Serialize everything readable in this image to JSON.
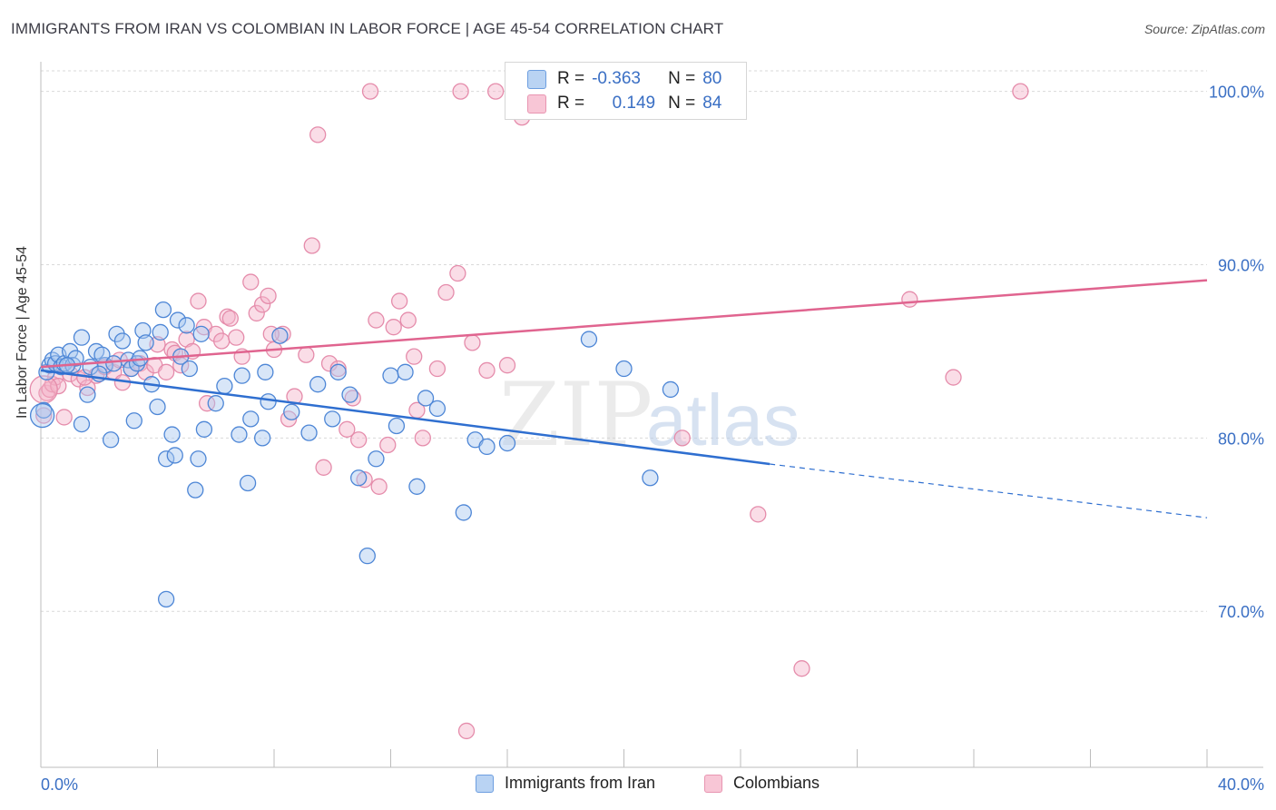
{
  "header": {
    "title": "IMMIGRANTS FROM IRAN VS COLOMBIAN IN LABOR FORCE | AGE 45-54 CORRELATION CHART",
    "source": "Source: ZipAtlas.com"
  },
  "watermark": {
    "zip": "ZIP",
    "atlas": "atlas"
  },
  "legend": {
    "r_label": "R =",
    "n_label": "N =",
    "series_a": {
      "r": "-0.363",
      "n": "80"
    },
    "series_b": {
      "r": "0.149",
      "n": "84"
    }
  },
  "bottom_legend": {
    "series_a": "Immigrants from Iran",
    "series_b": "Colombians"
  },
  "chart_data": {
    "type": "scatter",
    "title": "IMMIGRANTS FROM IRAN VS COLOMBIAN IN LABOR FORCE | AGE 45-54 CORRELATION CHART",
    "xlabel": "",
    "ylabel": "In Labor Force | Age 45-54",
    "xlim": [
      0,
      40
    ],
    "ylim": [
      61,
      101.5
    ],
    "x_tick_labels": [
      "0.0%",
      "40.0%"
    ],
    "y_ticks": [
      70,
      80,
      90,
      100
    ],
    "y_tick_labels": [
      "70.0%",
      "80.0%",
      "90.0%",
      "100.0%"
    ],
    "grid": true,
    "colors": {
      "series_a": "#5b8fd9",
      "series_b": "#e991b0",
      "trend_a": "#2f6fd0",
      "trend_b": "#e0648f",
      "tick_text": "#3a6fc4"
    },
    "series": [
      {
        "name": "Immigrants from Iran",
        "r": -0.363,
        "n": 80,
        "trend": {
          "x0": 0,
          "y0": 83.9,
          "x1": 25,
          "y1": 78.5,
          "dash_x1": 40,
          "dash_y1": 75.4
        },
        "points": [
          [
            0.1,
            81.6
          ],
          [
            0.2,
            83.8
          ],
          [
            0.3,
            84.2
          ],
          [
            0.4,
            84.5
          ],
          [
            0.5,
            84.3
          ],
          [
            0.6,
            84.8
          ],
          [
            0.7,
            84.1
          ],
          [
            0.8,
            84.3
          ],
          [
            1.0,
            85.0
          ],
          [
            1.1,
            84.2
          ],
          [
            1.2,
            84.6
          ],
          [
            1.4,
            85.8
          ],
          [
            1.6,
            82.5
          ],
          [
            1.9,
            85.0
          ],
          [
            2.2,
            84.2
          ],
          [
            2.1,
            84.8
          ],
          [
            2.6,
            86.0
          ],
          [
            2.8,
            85.6
          ],
          [
            3.0,
            84.5
          ],
          [
            3.1,
            84.0
          ],
          [
            3.3,
            84.3
          ],
          [
            3.5,
            86.2
          ],
          [
            3.6,
            85.5
          ],
          [
            3.8,
            83.1
          ],
          [
            4.0,
            81.8
          ],
          [
            4.1,
            86.1
          ],
          [
            4.2,
            87.4
          ],
          [
            4.3,
            78.8
          ],
          [
            4.5,
            80.2
          ],
          [
            4.7,
            86.8
          ],
          [
            4.8,
            84.7
          ],
          [
            5.0,
            86.5
          ],
          [
            5.1,
            84.0
          ],
          [
            5.3,
            77.0
          ],
          [
            5.4,
            78.8
          ],
          [
            5.5,
            86.0
          ],
          [
            5.6,
            80.5
          ],
          [
            6.3,
            83.0
          ],
          [
            6.8,
            80.2
          ],
          [
            6.9,
            83.6
          ],
          [
            7.1,
            77.4
          ],
          [
            7.2,
            81.1
          ],
          [
            7.6,
            80.0
          ],
          [
            7.7,
            83.8
          ],
          [
            7.8,
            82.1
          ],
          [
            8.2,
            85.9
          ],
          [
            8.6,
            81.5
          ],
          [
            9.2,
            80.3
          ],
          [
            9.5,
            83.1
          ],
          [
            10.0,
            81.1
          ],
          [
            10.2,
            83.8
          ],
          [
            10.6,
            82.5
          ],
          [
            10.9,
            77.7
          ],
          [
            11.2,
            73.2
          ],
          [
            11.5,
            78.8
          ],
          [
            12.0,
            83.6
          ],
          [
            12.5,
            83.8
          ],
          [
            12.9,
            77.2
          ],
          [
            13.2,
            82.3
          ],
          [
            13.6,
            81.7
          ],
          [
            14.5,
            75.7
          ],
          [
            14.9,
            79.9
          ],
          [
            15.3,
            79.5
          ],
          [
            16.0,
            79.7
          ],
          [
            18.8,
            85.7
          ],
          [
            20.0,
            84.0
          ],
          [
            20.9,
            77.7
          ],
          [
            21.6,
            82.8
          ],
          [
            4.3,
            70.7
          ],
          [
            2.4,
            79.9
          ],
          [
            1.4,
            80.8
          ],
          [
            3.2,
            81.0
          ],
          [
            0.9,
            84.2
          ],
          [
            1.7,
            84.1
          ],
          [
            2.0,
            83.7
          ],
          [
            2.5,
            84.3
          ],
          [
            3.4,
            84.6
          ],
          [
            4.6,
            79.0
          ],
          [
            6.0,
            82.0
          ],
          [
            12.2,
            80.7
          ]
        ]
      },
      {
        "name": "Colombians",
        "r": 0.149,
        "n": 84,
        "trend": {
          "x0": 0,
          "y0": 84.1,
          "x1": 40,
          "y1": 89.1
        },
        "points": [
          [
            0.1,
            81.3
          ],
          [
            0.2,
            82.6
          ],
          [
            0.3,
            82.8
          ],
          [
            0.4,
            83.1
          ],
          [
            0.5,
            83.5
          ],
          [
            0.6,
            83.0
          ],
          [
            0.8,
            81.2
          ],
          [
            1.0,
            83.7
          ],
          [
            1.3,
            83.4
          ],
          [
            1.6,
            82.9
          ],
          [
            1.9,
            83.6
          ],
          [
            2.2,
            84.1
          ],
          [
            2.5,
            83.8
          ],
          [
            2.8,
            83.2
          ],
          [
            3.1,
            84.0
          ],
          [
            3.4,
            84.3
          ],
          [
            3.6,
            83.8
          ],
          [
            3.9,
            84.2
          ],
          [
            4.0,
            85.4
          ],
          [
            4.3,
            83.8
          ],
          [
            4.5,
            85.1
          ],
          [
            4.6,
            84.9
          ],
          [
            4.8,
            84.2
          ],
          [
            5.0,
            85.7
          ],
          [
            5.2,
            85.0
          ],
          [
            5.4,
            87.9
          ],
          [
            5.6,
            86.4
          ],
          [
            5.7,
            82.0
          ],
          [
            6.0,
            86.0
          ],
          [
            6.2,
            85.6
          ],
          [
            6.4,
            87.0
          ],
          [
            6.7,
            85.8
          ],
          [
            6.9,
            84.7
          ],
          [
            7.2,
            89.0
          ],
          [
            7.4,
            87.2
          ],
          [
            7.6,
            87.7
          ],
          [
            7.8,
            88.2
          ],
          [
            8.0,
            85.1
          ],
          [
            8.3,
            86.0
          ],
          [
            8.5,
            81.1
          ],
          [
            8.7,
            82.4
          ],
          [
            9.1,
            84.8
          ],
          [
            9.3,
            91.1
          ],
          [
            9.5,
            97.5
          ],
          [
            9.7,
            78.3
          ],
          [
            9.9,
            84.3
          ],
          [
            10.2,
            84.0
          ],
          [
            10.5,
            80.5
          ],
          [
            10.7,
            82.3
          ],
          [
            10.9,
            79.9
          ],
          [
            11.1,
            77.6
          ],
          [
            11.5,
            86.8
          ],
          [
            11.9,
            79.6
          ],
          [
            12.1,
            86.4
          ],
          [
            12.3,
            87.9
          ],
          [
            12.6,
            86.8
          ],
          [
            12.8,
            84.7
          ],
          [
            12.9,
            81.6
          ],
          [
            13.1,
            80.0
          ],
          [
            13.6,
            84.0
          ],
          [
            13.9,
            88.4
          ],
          [
            14.3,
            89.5
          ],
          [
            14.8,
            85.5
          ],
          [
            15.3,
            83.9
          ],
          [
            16.0,
            84.2
          ],
          [
            16.5,
            98.5
          ],
          [
            17.1,
            100.0
          ],
          [
            18.0,
            100.0
          ],
          [
            22.0,
            80.0
          ],
          [
            24.6,
            75.6
          ],
          [
            26.1,
            66.7
          ],
          [
            29.8,
            88.0
          ],
          [
            31.3,
            83.5
          ],
          [
            33.6,
            100.0
          ],
          [
            11.3,
            100.0
          ],
          [
            14.4,
            100.0
          ],
          [
            15.6,
            100.0
          ],
          [
            16.2,
            99.1
          ],
          [
            14.6,
            63.1
          ],
          [
            11.6,
            77.2
          ],
          [
            6.5,
            86.9
          ],
          [
            2.7,
            84.5
          ],
          [
            7.9,
            86.0
          ],
          [
            1.5,
            83.5
          ]
        ]
      }
    ]
  }
}
